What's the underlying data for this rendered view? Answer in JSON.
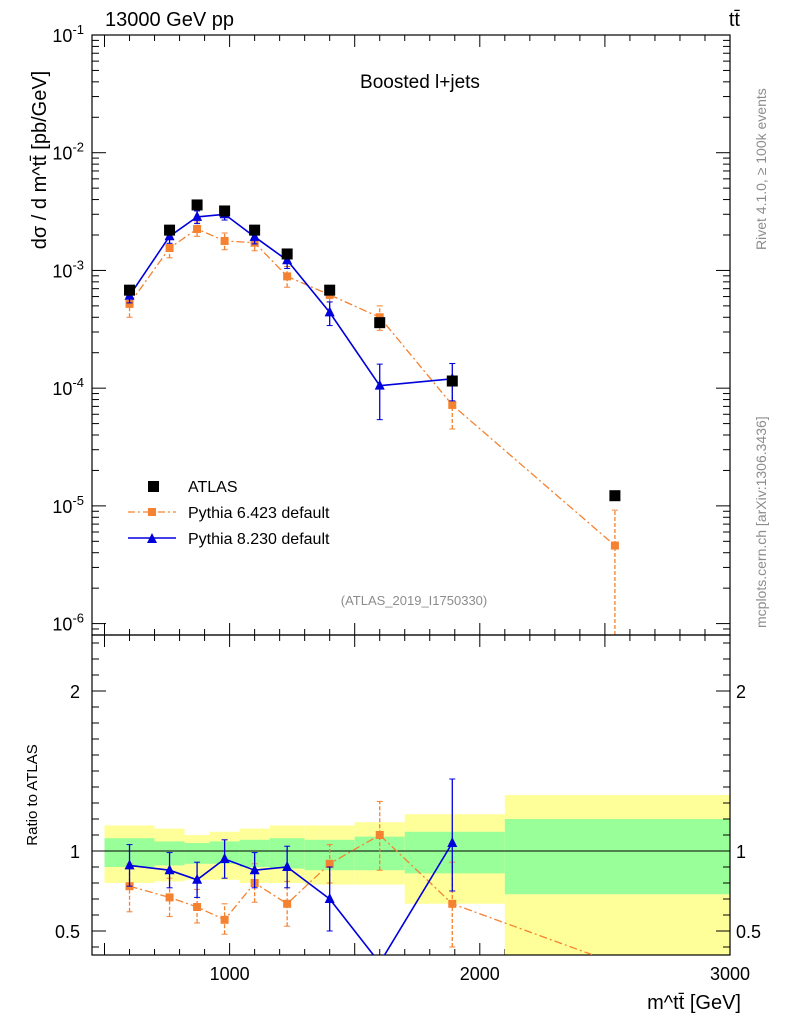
{
  "header": {
    "left": "13000 GeV pp",
    "right": "tt̄"
  },
  "side": {
    "rivet": "Rivet 4.1.0, ≥ 100k events",
    "mcplots": "mcplots.cern.ch [arXiv:1306.3436]"
  },
  "chart_data": [
    {
      "type": "line",
      "title": "Boosted l+jets",
      "analysis_tag": "(ATLAS_2019_I1750330)",
      "ylabel": "dσ / d m^tt̄ [pb/GeV]",
      "yscale": "log",
      "xlim": [
        450,
        3000
      ],
      "ylim": [
        8e-07,
        0.1
      ],
      "y_tick_labels": [
        {
          "base": "10",
          "exp": "-1",
          "value": 0.1
        },
        {
          "base": "10",
          "exp": "-2",
          "value": 0.01
        },
        {
          "base": "10",
          "exp": "-3",
          "value": 0.001
        },
        {
          "base": "10",
          "exp": "-4",
          "value": 0.0001
        },
        {
          "base": "10",
          "exp": "-5",
          "value": 1e-05
        },
        {
          "base": "10",
          "exp": "-6",
          "value": 1e-06
        }
      ],
      "x": [
        600,
        760,
        870,
        980,
        1100,
        1230,
        1400,
        1600,
        1890,
        2540
      ],
      "series": [
        {
          "name": "ATLAS",
          "color": "#000000",
          "marker": "square",
          "values": [
            0.00068,
            0.0022,
            0.0036,
            0.0032,
            0.0022,
            0.00138,
            0.00068,
            0.00036,
            0.000115,
            1.22e-05
          ]
        },
        {
          "name": "Pythia 6.423 default",
          "color": "#f58230",
          "marker": "square",
          "line": "dashdot",
          "values": [
            0.00052,
            0.00155,
            0.00225,
            0.00178,
            0.00172,
            0.00089,
            0.00062,
            0.0004,
            7.2e-05,
            4.6e-06
          ],
          "err_low": [
            0.0004,
            0.00128,
            0.00195,
            0.0015,
            0.00147,
            0.00072,
            0.00054,
            0.00031,
            4.5e-05,
            8e-07
          ],
          "err_high": [
            0.00066,
            0.00185,
            0.00258,
            0.00208,
            0.002,
            0.00108,
            0.0007,
            0.0005,
            0.000105,
            9.2e-06
          ]
        },
        {
          "name": "Pythia 8.230 default",
          "color": "#0000dd",
          "marker": "triangle",
          "line": "solid",
          "x": [
            600,
            760,
            870,
            980,
            1100,
            1230,
            1400,
            1600,
            1890
          ],
          "values": [
            0.00061,
            0.00195,
            0.00285,
            0.003,
            0.00193,
            0.00122,
            0.00044,
            0.000105,
            0.00012
          ],
          "err_low": [
            0.00053,
            0.0017,
            0.0025,
            0.00268,
            0.00168,
            0.00104,
            0.00034,
            5.4e-05,
            7.8e-05
          ],
          "err_high": [
            0.00069,
            0.0022,
            0.0032,
            0.00333,
            0.00218,
            0.0014,
            0.00054,
            0.00016,
            0.000162
          ]
        }
      ],
      "legend": [
        "ATLAS",
        "Pythia 6.423 default",
        "Pythia 8.230 default"
      ]
    },
    {
      "type": "line",
      "ylabel": "Ratio to ATLAS",
      "xlabel": "m^tt̄ [GeV]",
      "xlim": [
        450,
        3000
      ],
      "ylim": [
        0.35,
        2.35
      ],
      "x_ticks": [
        1000,
        2000,
        3000
      ],
      "x_tick_labels": [
        "1000",
        "2000",
        "3000"
      ],
      "y_ticks": [
        0.5,
        1,
        2
      ],
      "y_tick_labels": [
        "0.5",
        "1",
        "2"
      ],
      "bands": {
        "bins": [
          [
            500,
            700
          ],
          [
            700,
            820
          ],
          [
            820,
            920
          ],
          [
            920,
            1040
          ],
          [
            1040,
            1160
          ],
          [
            1160,
            1300
          ],
          [
            1300,
            1500
          ],
          [
            1500,
            1700
          ],
          [
            1700,
            2100
          ],
          [
            2100,
            3000
          ]
        ],
        "yellow": [
          [
            0.8,
            1.16
          ],
          [
            0.81,
            1.14
          ],
          [
            0.82,
            1.1
          ],
          [
            0.82,
            1.12
          ],
          [
            0.8,
            1.14
          ],
          [
            0.8,
            1.16
          ],
          [
            0.79,
            1.16
          ],
          [
            0.79,
            1.18
          ],
          [
            0.67,
            1.23
          ],
          [
            0.35,
            1.35
          ]
        ],
        "green": [
          [
            0.9,
            1.08
          ],
          [
            0.91,
            1.06
          ],
          [
            0.92,
            1.05
          ],
          [
            0.92,
            1.06
          ],
          [
            0.9,
            1.07
          ],
          [
            0.89,
            1.08
          ],
          [
            0.88,
            1.07
          ],
          [
            0.88,
            1.09
          ],
          [
            0.86,
            1.12
          ],
          [
            0.73,
            1.2
          ]
        ]
      },
      "series": [
        {
          "name": "Pythia 6.423 default",
          "color": "#f58230",
          "marker": "square",
          "line": "dashdot",
          "x": [
            600,
            760,
            870,
            980,
            1100,
            1230,
            1400,
            1600,
            1890,
            2540
          ],
          "values": [
            0.78,
            0.71,
            0.65,
            0.57,
            0.8,
            0.67,
            0.92,
            1.1,
            0.67,
            0.3
          ],
          "err_low": [
            0.62,
            0.59,
            0.55,
            0.48,
            0.68,
            0.53,
            0.8,
            0.88,
            0.4,
            0.3
          ],
          "err_high": [
            0.92,
            0.83,
            0.76,
            0.67,
            0.92,
            0.81,
            1.04,
            1.31,
            0.93,
            0.3
          ]
        },
        {
          "name": "Pythia 8.230 default",
          "color": "#0000dd",
          "marker": "triangle",
          "line": "solid",
          "x": [
            600,
            760,
            870,
            980,
            1100,
            1230,
            1400,
            1600,
            1890
          ],
          "values": [
            0.91,
            0.88,
            0.82,
            0.95,
            0.88,
            0.9,
            0.7,
            0.3,
            1.05
          ],
          "err_low": [
            0.78,
            0.77,
            0.71,
            0.83,
            0.77,
            0.77,
            0.5,
            0.3,
            0.75
          ],
          "err_high": [
            1.04,
            0.99,
            0.93,
            1.07,
            0.99,
            1.03,
            0.9,
            0.3,
            1.45
          ]
        }
      ]
    }
  ]
}
